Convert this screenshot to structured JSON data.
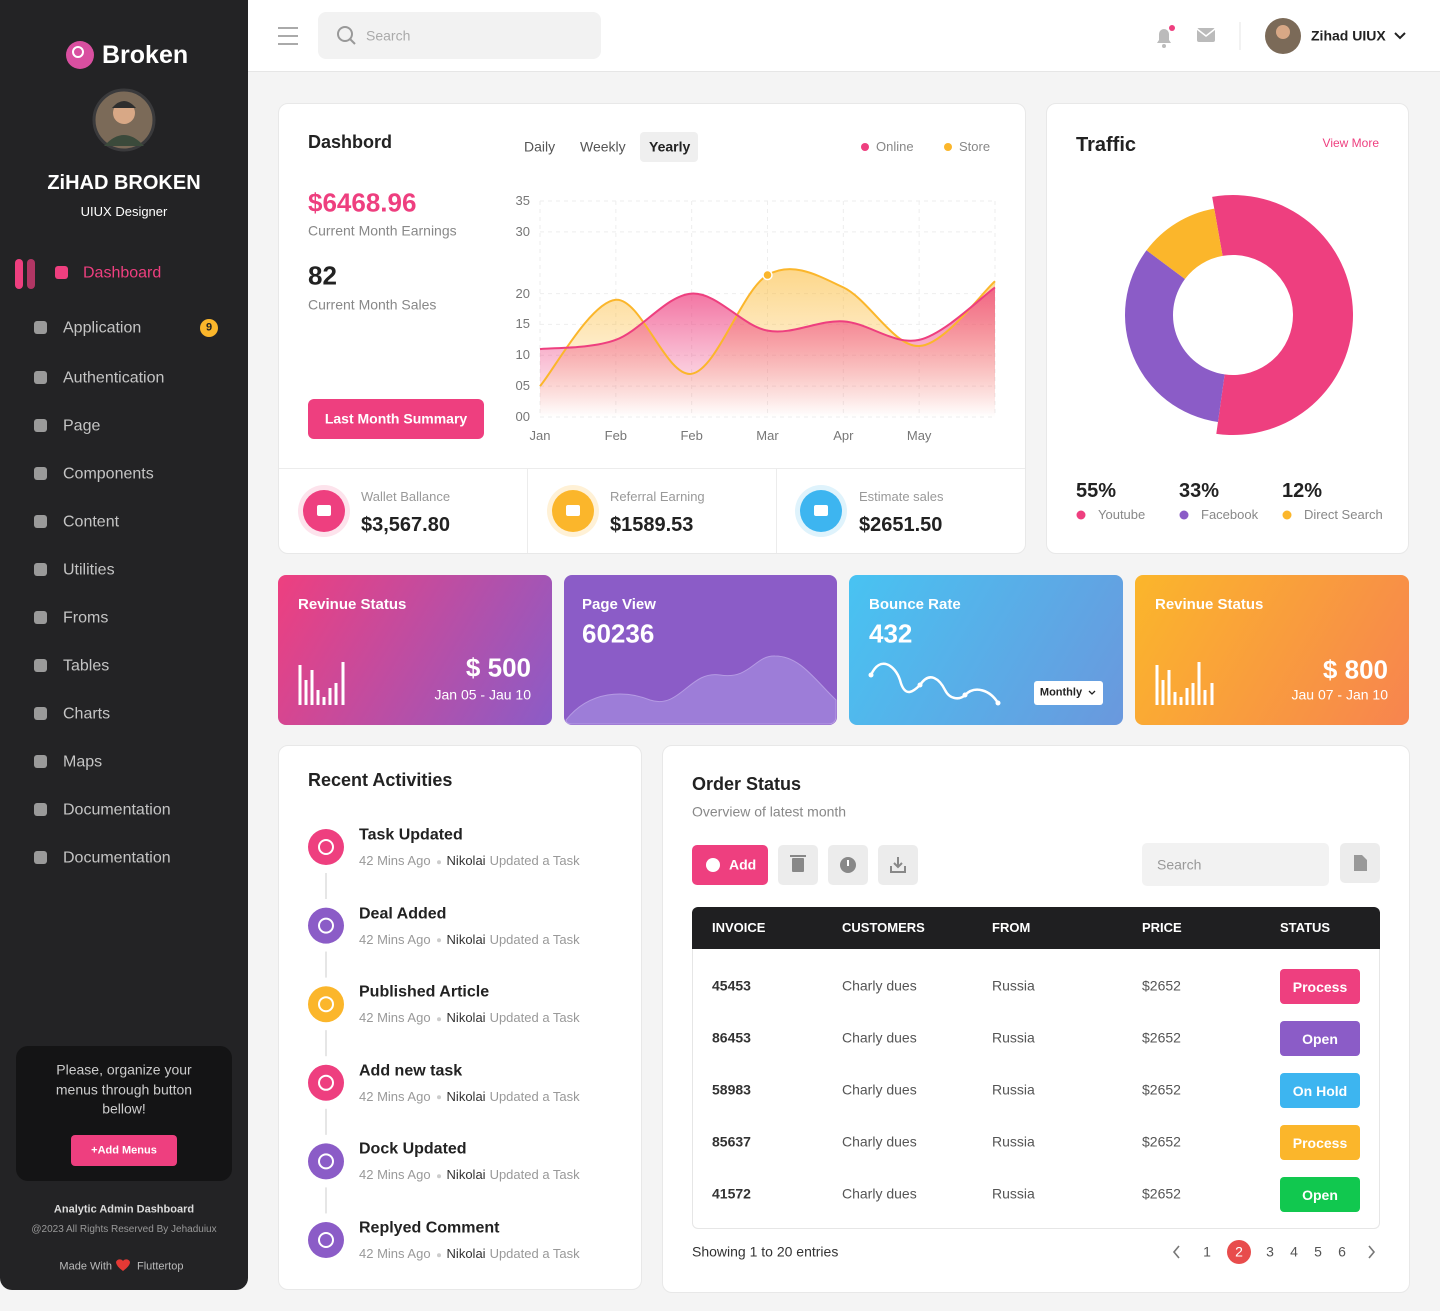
{
  "sidebar": {
    "brand": "Broken",
    "user_name": "ZiHAD BROKEN",
    "user_role": "UIUX Designer",
    "menu": [
      {
        "label": "Dashboard"
      },
      {
        "label": "Application",
        "badge": 9
      },
      {
        "label": "Authentication"
      },
      {
        "label": "Page"
      },
      {
        "label": "Components"
      },
      {
        "label": "Content"
      },
      {
        "label": "Utilities"
      },
      {
        "label": "Froms"
      },
      {
        "label": "Tables"
      },
      {
        "label": "Charts"
      },
      {
        "label": "Maps"
      },
      {
        "label": "Documentation"
      },
      {
        "label": "Documentation"
      }
    ],
    "promo": {
      "text": "Please, organize your menus through button bellow!",
      "button": "+Add Menus"
    },
    "footer": {
      "title": "Analytic Admin Dashboard",
      "copyright": "@2023 All Rights Reserved By Jehaduiux",
      "made_with": "Made With",
      "credit": "Fluttertop"
    }
  },
  "topbar": {
    "search_placeholder": "Search",
    "user": "Zihad UIUX"
  },
  "dashboard": {
    "title": "Dashbord",
    "tabs": [
      "Daily",
      "Weekly",
      "Yearly"
    ],
    "earnings": "$6468.96",
    "earnings_label": "Current Month Earnings",
    "sales": 82,
    "sales_label": "Current Month Sales",
    "button": "Last Month Summary",
    "stats": [
      {
        "label": "Wallet Ballance",
        "value": "$3,567.80",
        "color": "#ee3f7f"
      },
      {
        "label": "Referral Earning",
        "value": "$1589.53",
        "color": "#fbb62b"
      },
      {
        "label": "Estimate sales",
        "value": "$2651.50",
        "color": "#3db5f0"
      }
    ]
  },
  "traffic": {
    "title": "Traffic",
    "link": "View More"
  },
  "cards": [
    {
      "title": "Revinue Status",
      "value": "$ 500",
      "range": "Jan 05 - Jau 10"
    },
    {
      "title": "Page View",
      "value": 60236
    },
    {
      "title": "Bounce Rate",
      "value": 432,
      "select": "Monthly"
    },
    {
      "title": "Revinue Status",
      "value": "$ 800",
      "range": "Jau 07 - Jan 10"
    }
  ],
  "activities": {
    "title": "Recent Activities",
    "items": [
      {
        "title": "Task Updated",
        "time": "42 Mins Ago",
        "user": "Nikolai",
        "action": "Updated a Task",
        "color": "#ee3f7f"
      },
      {
        "title": "Deal Added",
        "time": "42 Mins Ago",
        "user": "Nikolai",
        "action": "Updated a Task",
        "color": "#8b5cc7"
      },
      {
        "title": "Published Article",
        "time": "42 Mins Ago",
        "user": "Nikolai",
        "action": "Updated a Task",
        "color": "#fbb62b"
      },
      {
        "title": "Add new task",
        "time": "42 Mins Ago",
        "user": "Nikolai",
        "action": "Updated a Task",
        "color": "#ee3f7f"
      },
      {
        "title": "Dock Updated",
        "time": "42 Mins Ago",
        "user": "Nikolai",
        "action": "Updated a Task",
        "color": "#8b5cc7"
      },
      {
        "title": "Replyed Comment",
        "time": "42 Mins Ago",
        "user": "Nikolai",
        "action": "Updated a Task",
        "color": "#8b5cc7"
      }
    ]
  },
  "orders": {
    "title": "Order Status",
    "subtitle": "Overview of latest month",
    "add": "Add",
    "search_placeholder": "Search",
    "columns": [
      "INVOICE",
      "CUSTOMERS",
      "FROM",
      "PRICE",
      "STATUS"
    ],
    "rows": [
      {
        "invoice": 45453,
        "customer": "Charly dues",
        "from": "Russia",
        "price": "$2652",
        "status": "Process",
        "color": "#ee3f7f"
      },
      {
        "invoice": 86453,
        "customer": "Charly dues",
        "from": "Russia",
        "price": "$2652",
        "status": "Open",
        "color": "#8b5cc7"
      },
      {
        "invoice": 58983,
        "customer": "Charly dues",
        "from": "Russia",
        "price": "$2652",
        "status": "On Hold",
        "color": "#3db5f0"
      },
      {
        "invoice": 85637,
        "customer": "Charly dues",
        "from": "Russia",
        "price": "$2652",
        "status": "Process",
        "color": "#fbb62b"
      },
      {
        "invoice": 41572,
        "customer": "Charly dues",
        "from": "Russia",
        "price": "$2652",
        "status": "Open",
        "color": "#11c84f"
      }
    ],
    "footer": "Showing 1 to 20 entries",
    "pages": [
      1,
      2,
      3,
      4,
      5,
      6
    ]
  },
  "chart_data": [
    {
      "type": "area",
      "categories": [
        "Jan",
        "Feb",
        "Feb",
        "Mar",
        "Apr",
        "May",
        null
      ],
      "series": [
        {
          "name": "Online",
          "color": "#ee3f7f",
          "values": [
            11,
            12.5,
            20,
            14,
            15.5,
            12.5,
            21
          ]
        },
        {
          "name": "Store",
          "color": "#fbb62b",
          "values": [
            5,
            19,
            7,
            23,
            21,
            11.5,
            22
          ]
        }
      ],
      "ylim": [
        0,
        35
      ],
      "yticks": [
        {
          "value": 0,
          "label": "00"
        },
        {
          "value": 5,
          "label": "05"
        },
        10,
        15,
        20,
        30,
        35
      ],
      "grid": true
    },
    {
      "type": "donut",
      "categories": [
        "Youtube",
        "Facebook",
        "Direct Search"
      ],
      "values": [
        55,
        33,
        12
      ],
      "value_labels": [
        "55%",
        "33%",
        "12%"
      ],
      "colors": [
        "#ee3f7f",
        "#8b5cc7",
        "#fbb62b"
      ]
    }
  ]
}
